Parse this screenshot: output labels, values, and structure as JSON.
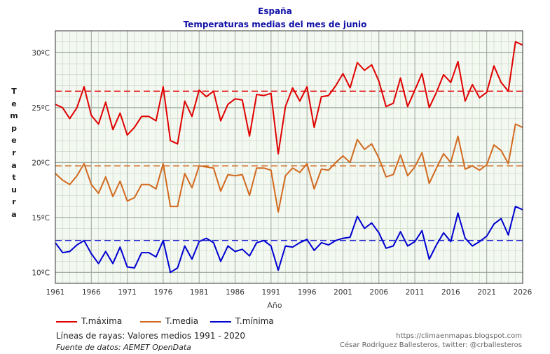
{
  "header": {
    "title": "España",
    "subtitle": "Temperaturas medias del mes de junio"
  },
  "footer": {
    "dashed_note": "Líneas de rayas: Valores medios 1991 - 2020",
    "source": "Fuente de datos: AEMET OpenData",
    "blog": "https://climaenmapas.blogspot.com",
    "author": "César Rodríguez Ballesteros, twitter: @crballesteros"
  },
  "chart_data": {
    "type": "line",
    "xlabel": "Año",
    "ylabel": "Temperatura",
    "xlim": [
      1961,
      2026
    ],
    "ylim": [
      9,
      32
    ],
    "x_ticks": [
      1961,
      1966,
      1971,
      1976,
      1981,
      1986,
      1991,
      1996,
      2001,
      2006,
      2011,
      2016,
      2021,
      2026
    ],
    "y_ticks": [
      10,
      15,
      20,
      25,
      30
    ],
    "y_tick_labels": [
      "10ºC",
      "15ºC",
      "20ºC",
      "25ºC",
      "30ºC"
    ],
    "grid": true,
    "legend_position": "bottom-left",
    "x": [
      1961,
      1962,
      1963,
      1964,
      1965,
      1966,
      1967,
      1968,
      1969,
      1970,
      1971,
      1972,
      1973,
      1974,
      1975,
      1976,
      1977,
      1978,
      1979,
      1980,
      1981,
      1982,
      1983,
      1984,
      1985,
      1986,
      1987,
      1988,
      1989,
      1990,
      1991,
      1992,
      1993,
      1994,
      1995,
      1996,
      1997,
      1998,
      1999,
      2000,
      2001,
      2002,
      2003,
      2004,
      2005,
      2006,
      2007,
      2008,
      2009,
      2010,
      2011,
      2012,
      2013,
      2014,
      2015,
      2016,
      2017,
      2018,
      2019,
      2020,
      2021,
      2022,
      2023,
      2024,
      2025,
      2026
    ],
    "series": [
      {
        "name": "T.máxima",
        "color": "#e00000",
        "mean_1991_2020": 26.5,
        "values": [
          25.3,
          25.0,
          24.0,
          25.0,
          26.9,
          24.3,
          23.5,
          25.5,
          23.0,
          24.5,
          22.5,
          23.2,
          24.2,
          24.2,
          23.8,
          26.9,
          22.0,
          21.7,
          25.6,
          24.2,
          26.6,
          26.0,
          26.5,
          23.8,
          25.3,
          25.8,
          25.7,
          22.4,
          26.2,
          26.1,
          26.3,
          20.8,
          25.1,
          26.8,
          25.6,
          26.9,
          23.2,
          26.0,
          26.1,
          27.0,
          28.1,
          26.8,
          29.1,
          28.4,
          28.9,
          27.4,
          25.1,
          25.4,
          27.7,
          25.1,
          26.6,
          28.1,
          25.0,
          26.4,
          28.0,
          27.3,
          29.2,
          25.6,
          27.1,
          25.9,
          26.4,
          28.8,
          27.3,
          26.5,
          31.0,
          30.7
        ]
      },
      {
        "name": "T.media",
        "color": "#d2691e",
        "mean_1991_2020": 19.7,
        "values": [
          19.0,
          18.4,
          18.0,
          18.8,
          19.9,
          18.0,
          17.2,
          18.7,
          16.9,
          18.3,
          16.5,
          16.8,
          18.0,
          18.0,
          17.6,
          19.9,
          16.0,
          16.0,
          19.0,
          17.7,
          19.7,
          19.6,
          19.5,
          17.4,
          18.9,
          18.8,
          18.9,
          17.0,
          19.5,
          19.5,
          19.3,
          15.5,
          18.8,
          19.5,
          19.1,
          19.9,
          17.6,
          19.4,
          19.3,
          20.0,
          20.6,
          20.0,
          22.1,
          21.2,
          21.7,
          20.4,
          18.7,
          18.9,
          20.7,
          18.8,
          19.6,
          20.9,
          18.1,
          19.5,
          20.8,
          20.0,
          22.4,
          19.4,
          19.7,
          19.3,
          19.8,
          21.6,
          21.1,
          19.9,
          23.5,
          23.2
        ]
      },
      {
        "name": "T.mínima",
        "color": "#0000d0",
        "mean_1991_2020": 12.9,
        "values": [
          12.7,
          11.8,
          11.9,
          12.5,
          12.9,
          11.7,
          10.8,
          11.9,
          10.8,
          12.3,
          10.5,
          10.4,
          11.8,
          11.8,
          11.4,
          12.9,
          10.0,
          10.4,
          12.4,
          11.2,
          12.8,
          13.1,
          12.7,
          11.0,
          12.4,
          11.9,
          12.1,
          11.5,
          12.7,
          12.9,
          12.4,
          10.2,
          12.4,
          12.3,
          12.7,
          13.0,
          12.0,
          12.7,
          12.5,
          12.9,
          13.1,
          13.2,
          15.1,
          14.0,
          14.5,
          13.6,
          12.2,
          12.4,
          13.7,
          12.4,
          12.8,
          13.8,
          11.2,
          12.5,
          13.6,
          12.8,
          15.4,
          13.1,
          12.4,
          12.8,
          13.3,
          14.4,
          14.9,
          13.4,
          16.0,
          15.7
        ]
      }
    ]
  }
}
